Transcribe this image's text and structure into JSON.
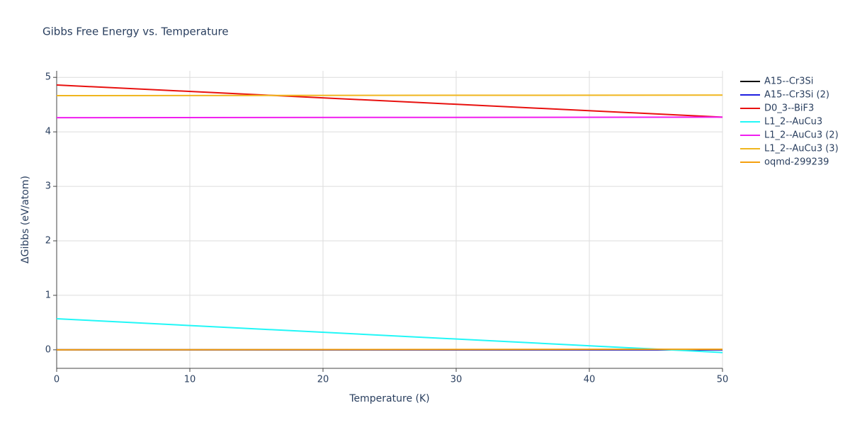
{
  "chart_data": {
    "type": "line",
    "title": "Gibbs Free Energy vs. Temperature",
    "x_label": "Temperature (K)",
    "y_label": "ΔGibbs (eV/atom)",
    "x": [
      0,
      50
    ],
    "series": [
      {
        "name": "A15--Cr3Si",
        "color": "#000000",
        "values": [
          0,
          0
        ]
      },
      {
        "name": "A15--Cr3Si (2)",
        "color": "#1f1fe0",
        "values": [
          0,
          0
        ]
      },
      {
        "name": "D0_3--BiF3",
        "color": "#e8110f",
        "values": [
          4.86,
          4.27
        ]
      },
      {
        "name": "L1_2--AuCu3",
        "color": "#22f7f7",
        "values": [
          0.57,
          -0.05
        ]
      },
      {
        "name": "L1_2--AuCu3 (2)",
        "color": "#f01ef0",
        "values": [
          4.26,
          4.27
        ]
      },
      {
        "name": "L1_2--AuCu3 (3)",
        "color": "#f0b61e",
        "values": [
          4.665,
          4.675
        ]
      },
      {
        "name": "oqmd-299239",
        "color": "#f5a00f",
        "values": [
          0,
          0.01
        ]
      }
    ],
    "xlim": [
      0,
      50
    ],
    "xticks": [
      0,
      10,
      20,
      30,
      40,
      50
    ],
    "ylim": [
      -0.34,
      5.12
    ],
    "yticks": [
      0,
      1,
      2,
      3,
      4,
      5
    ],
    "grid": true,
    "legend": "right"
  }
}
